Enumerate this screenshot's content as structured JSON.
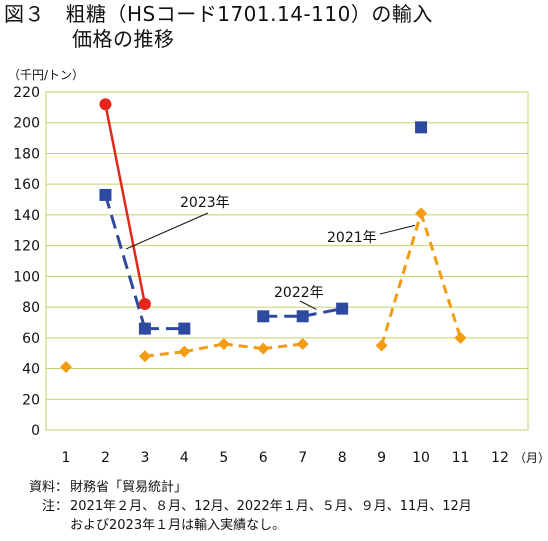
{
  "title": {
    "line1": "図３　粗糖（HSコード1701.14-110）の輸入",
    "line2": "価格の推移"
  },
  "unit_label": "（千円/トン）",
  "footer": {
    "source_label": "資料：",
    "source_text": "財務省「貿易統計」",
    "note_label": "注：",
    "note_line1": "2021年２月、８月、12月、2022年１月、５月、９月、11月、12月",
    "note_line2": "および2023年１月は輸入実績なし。"
  },
  "chart_data": {
    "type": "line",
    "x_ticks": [
      "1",
      "2",
      "3",
      "4",
      "5",
      "6",
      "7",
      "8",
      "9",
      "10",
      "11",
      "12"
    ],
    "x_unit": "（月）",
    "y_ticks": [
      "0",
      "20",
      "40",
      "60",
      "80",
      "100",
      "120",
      "140",
      "160",
      "180",
      "200",
      "220"
    ],
    "ylim": [
      0,
      220
    ],
    "xlim": [
      1,
      12
    ],
    "grid": true,
    "series": [
      {
        "name": "2021年",
        "color": "#f39c12",
        "marker": "diamond",
        "line_style": "dashed",
        "points": [
          {
            "x": 1,
            "y": 41
          },
          {
            "x": 3,
            "y": 48
          },
          {
            "x": 4,
            "y": 51
          },
          {
            "x": 5,
            "y": 56
          },
          {
            "x": 6,
            "y": 53
          },
          {
            "x": 7,
            "y": 56
          },
          {
            "x": 9,
            "y": 55
          },
          {
            "x": 10,
            "y": 141
          },
          {
            "x": 11,
            "y": 60
          }
        ]
      },
      {
        "name": "2022年",
        "color": "#2e4a9e",
        "marker": "square",
        "line_style": "dashed",
        "points": [
          {
            "x": 2,
            "y": 153
          },
          {
            "x": 3,
            "y": 66
          },
          {
            "x": 4,
            "y": 66
          },
          {
            "x": 6,
            "y": 74
          },
          {
            "x": 7,
            "y": 74
          },
          {
            "x": 8,
            "y": 79
          },
          {
            "x": 10,
            "y": 197
          }
        ]
      },
      {
        "name": "2023年",
        "color": "#e5261b",
        "marker": "circle",
        "line_style": "solid",
        "points": [
          {
            "x": 2,
            "y": 212
          },
          {
            "x": 3,
            "y": 82
          }
        ]
      }
    ]
  }
}
